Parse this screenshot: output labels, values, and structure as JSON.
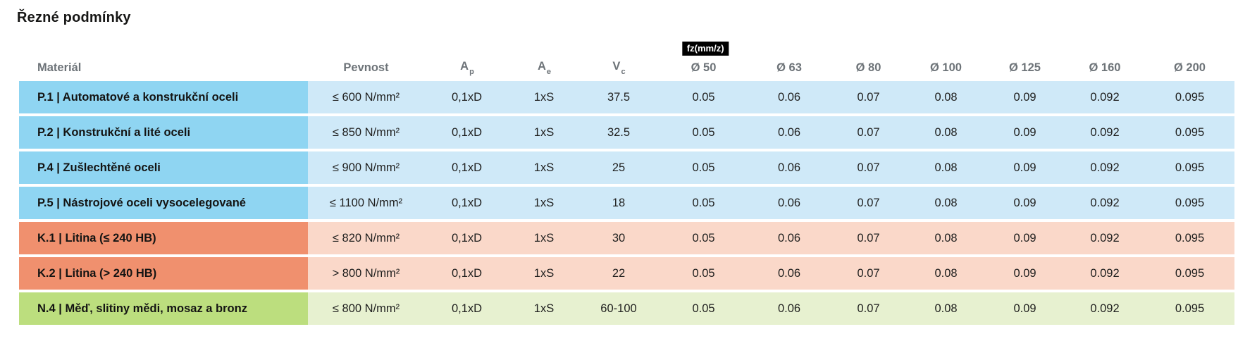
{
  "title": "Řezné podmínky",
  "fz_badge": "fz(mm/z)",
  "columns": {
    "material": "Materiál",
    "pevnost": "Pevnost",
    "ap": {
      "base": "A",
      "sub": "p"
    },
    "ae": {
      "base": "A",
      "sub": "e"
    },
    "vc": {
      "base": "V",
      "sub": "c"
    },
    "diameters": [
      "Ø 50",
      "Ø 63",
      "Ø 80",
      "Ø 100",
      "Ø 125",
      "Ø 160",
      "Ø 200"
    ]
  },
  "colors": {
    "steel": {
      "dark": "#8FD5F2",
      "light": "#CFE9F8"
    },
    "iron": {
      "dark": "#F0906E",
      "light": "#FAD8C9"
    },
    "nonferrous": {
      "dark": "#BCDE7E",
      "light": "#E7F1D0"
    },
    "badge_bg": "#000000",
    "badge_text": "#ffffff",
    "header_text": "#6d7378",
    "body_text": "#1f1f1e"
  },
  "rows": [
    {
      "group": "steel",
      "material": "P.1 | Automatové a konstrukční oceli",
      "pevnost": "≤ 600 N/mm²",
      "ap": "0,1xD",
      "ae": "1xS",
      "vc": "37.5",
      "fz": [
        "0.05",
        "0.06",
        "0.07",
        "0.08",
        "0.09",
        "0.092",
        "0.095"
      ]
    },
    {
      "group": "steel",
      "material": "P.2 | Konstrukční a lité oceli",
      "pevnost": "≤ 850 N/mm²",
      "ap": "0,1xD",
      "ae": "1xS",
      "vc": "32.5",
      "fz": [
        "0.05",
        "0.06",
        "0.07",
        "0.08",
        "0.09",
        "0.092",
        "0.095"
      ]
    },
    {
      "group": "steel",
      "material": "P.4 | Zušlechtěné oceli",
      "pevnost": "≤ 900 N/mm²",
      "ap": "0,1xD",
      "ae": "1xS",
      "vc": "25",
      "fz": [
        "0.05",
        "0.06",
        "0.07",
        "0.08",
        "0.09",
        "0.092",
        "0.095"
      ]
    },
    {
      "group": "steel",
      "material": "P.5 | Nástrojové oceli vysocelegované",
      "pevnost": "≤ 1100 N/mm²",
      "ap": "0,1xD",
      "ae": "1xS",
      "vc": "18",
      "fz": [
        "0.05",
        "0.06",
        "0.07",
        "0.08",
        "0.09",
        "0.092",
        "0.095"
      ]
    },
    {
      "group": "iron",
      "material": "K.1 | Litina (≤ 240 HB)",
      "pevnost": "≤ 820 N/mm²",
      "ap": "0,1xD",
      "ae": "1xS",
      "vc": "30",
      "fz": [
        "0.05",
        "0.06",
        "0.07",
        "0.08",
        "0.09",
        "0.092",
        "0.095"
      ]
    },
    {
      "group": "iron",
      "material": "K.2 | Litina (> 240 HB)",
      "pevnost": "> 800 N/mm²",
      "ap": "0,1xD",
      "ae": "1xS",
      "vc": "22",
      "fz": [
        "0.05",
        "0.06",
        "0.07",
        "0.08",
        "0.09",
        "0.092",
        "0.095"
      ]
    },
    {
      "group": "nonferrous",
      "material": "N.4 | Měď, slitiny mědi, mosaz a bronz",
      "pevnost": "≤ 800 N/mm²",
      "ap": "0,1xD",
      "ae": "1xS",
      "vc": "60-100",
      "fz": [
        "0.05",
        "0.06",
        "0.07",
        "0.08",
        "0.09",
        "0.092",
        "0.095"
      ]
    }
  ]
}
